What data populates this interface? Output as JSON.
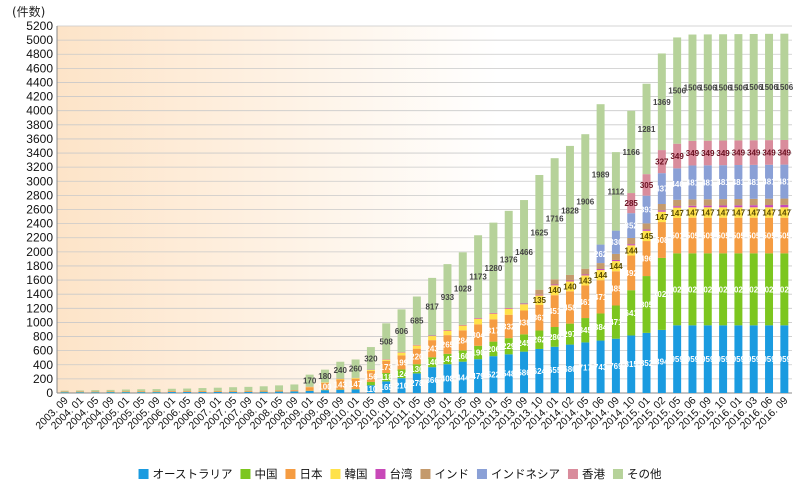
{
  "chart_data": {
    "type": "bar",
    "stacked": true,
    "title": "",
    "unit_label": "(件数)",
    "ylim": [
      0,
      5200
    ],
    "yticks": [
      0,
      200,
      400,
      600,
      800,
      1000,
      1200,
      1400,
      1600,
      1800,
      2000,
      2200,
      2400,
      2600,
      2800,
      3000,
      3200,
      3400,
      3600,
      3800,
      4000,
      4200,
      4400,
      4600,
      4800,
      5000,
      5200
    ],
    "grid": true,
    "legend_position": "bottom",
    "categories": [
      "2003. 09",
      "2004. 01",
      "2004. 05",
      "2004. 09",
      "2005. 01",
      "2005. 05",
      "2005. 09",
      "2006. 01",
      "2006. 05",
      "2006. 09",
      "2007. 01",
      "2007. 05",
      "2007. 09",
      "2008. 01",
      "2008. 05",
      "2008. 09",
      "2009. 01",
      "2009. 05",
      "2009. 09",
      "2010. 01",
      "2010. 05",
      "2010. 09",
      "2011. 01",
      "2011. 05",
      "2011. 09",
      "2012. 01",
      "2012. 05",
      "2012. 09",
      "2013. 01",
      "2013. 05",
      "2013. 09",
      "2013. 10",
      "2014. 01",
      "2014. 02",
      "2014. 05",
      "2014. 06",
      "2014. 09",
      "2014. 10",
      "2015. 01",
      "2015. 02",
      "2015. 05",
      "2015. 06",
      "2015. 09",
      "2015. 10",
      "2016. 01",
      "2016. 03",
      "2016. 06",
      "2016. 09"
    ],
    "series": [
      {
        "name": "オーストラリア",
        "color": "#1a9be0",
        "values": [
          10,
          10,
          10,
          12,
          12,
          12,
          12,
          14,
          14,
          15,
          15,
          16,
          16,
          18,
          20,
          22,
          30,
          40,
          45,
          50,
          110,
          165,
          210,
          278,
          366,
          408,
          444,
          479,
          522,
          548,
          586,
          624,
          655,
          686,
          717,
          743,
          769,
          815,
          852,
          894,
          959,
          959,
          959,
          959,
          959,
          959,
          959,
          959
        ]
      },
      {
        "name": "中国",
        "color": "#7cc61f",
        "values": [
          2,
          2,
          2,
          2,
          2,
          2,
          2,
          2,
          2,
          2,
          2,
          2,
          2,
          2,
          2,
          2,
          3,
          3,
          4,
          5,
          47,
          118,
          124,
          130,
          140,
          147,
          160,
          190,
          206,
          229,
          245,
          262,
          280,
          297,
          345,
          384,
          471,
          641,
          805,
          1020,
          1020,
          1020,
          1020,
          1020,
          1020,
          1020,
          1020,
          1020
        ]
      },
      {
        "name": "日本",
        "color": "#f59c42",
        "values": [
          8,
          8,
          8,
          9,
          9,
          10,
          10,
          11,
          11,
          12,
          12,
          13,
          13,
          14,
          15,
          16,
          50,
          100,
          143,
          147,
          156,
          173,
          199,
          220,
          243,
          265,
          284,
          304,
          317,
          332,
          338,
          361,
          451,
          458,
          461,
          471,
          485,
          492,
          496,
          508,
          501,
          505,
          505,
          505,
          505,
          505,
          505,
          505
        ]
      },
      {
        "name": "韓国",
        "color": "#ffe24a",
        "values": [
          0,
          0,
          0,
          0,
          0,
          0,
          0,
          0,
          0,
          0,
          0,
          0,
          0,
          0,
          0,
          0,
          5,
          6,
          8,
          10,
          14,
          17,
          40,
          47,
          58,
          65,
          69,
          80,
          80,
          86,
          89,
          135,
          140,
          140,
          143,
          144,
          144,
          144,
          145,
          147,
          147,
          147,
          147,
          147,
          147,
          147,
          147,
          147
        ]
      },
      {
        "name": "台湾",
        "color": "#c849b8",
        "values": [
          1,
          1,
          1,
          1,
          1,
          1,
          1,
          1,
          1,
          1,
          1,
          1,
          1,
          1,
          1,
          1,
          2,
          2,
          3,
          3,
          4,
          6,
          6,
          7,
          7,
          8,
          8,
          9,
          9,
          10,
          10,
          11,
          12,
          13,
          14,
          15,
          16,
          17,
          18,
          19,
          20,
          22,
          24,
          26,
          28,
          30,
          32,
          34
        ]
      },
      {
        "name": "インド",
        "color": "#c49a6c",
        "values": [
          0,
          0,
          0,
          0,
          0,
          0,
          0,
          0,
          0,
          0,
          0,
          0,
          0,
          0,
          0,
          0,
          0,
          0,
          0,
          0,
          0,
          0,
          0,
          0,
          0,
          0,
          0,
          0,
          0,
          0,
          0,
          71,
          73,
          79,
          81,
          84,
          86,
          87,
          87,
          90,
          90,
          90,
          90,
          90,
          90,
          90,
          90,
          90
        ]
      },
      {
        "name": "インドネシア",
        "color": "#8aa0d6",
        "values": [
          0,
          0,
          0,
          0,
          0,
          0,
          0,
          0,
          0,
          0,
          0,
          0,
          0,
          0,
          0,
          0,
          0,
          0,
          0,
          0,
          0,
          0,
          0,
          0,
          0,
          0,
          0,
          0,
          0,
          0,
          0,
          0,
          0,
          0,
          0,
          262,
          330,
          352,
          393,
          437,
          446,
          481,
          481,
          481,
          481,
          481,
          481,
          481
        ]
      },
      {
        "name": "香港",
        "color": "#d98c9c",
        "values": [
          0,
          0,
          0,
          0,
          0,
          0,
          0,
          0,
          0,
          0,
          0,
          0,
          0,
          0,
          0,
          0,
          0,
          0,
          0,
          0,
          0,
          0,
          0,
          0,
          0,
          0,
          0,
          0,
          0,
          0,
          0,
          0,
          0,
          0,
          0,
          0,
          0,
          285,
          305,
          327,
          349,
          349,
          349,
          349,
          349,
          349,
          349,
          349
        ]
      },
      {
        "name": "その他",
        "color": "#b6d29a",
        "values": [
          12,
          15,
          20,
          20,
          25,
          28,
          30,
          32,
          35,
          40,
          45,
          50,
          55,
          60,
          70,
          80,
          170,
          180,
          240,
          260,
          320,
          508,
          606,
          685,
          817,
          933,
          1028,
          1173,
          1280,
          1376,
          1466,
          1625,
          1716,
          1828,
          1906,
          1989,
          1112,
          1166,
          1281,
          1369,
          1506,
          1506,
          1506,
          1506,
          1506,
          1506,
          1506,
          1506
        ]
      }
    ]
  },
  "legend": {
    "items": [
      {
        "label": "オーストラリア",
        "color": "#1a9be0"
      },
      {
        "label": "中国",
        "color": "#7cc61f"
      },
      {
        "label": "日本",
        "color": "#f59c42"
      },
      {
        "label": "韓国",
        "color": "#ffe24a"
      },
      {
        "label": "台湾",
        "color": "#c849b8"
      },
      {
        "label": "インド",
        "color": "#c49a6c"
      },
      {
        "label": "インドネシア",
        "color": "#8aa0d6"
      },
      {
        "label": "香港",
        "color": "#d98c9c"
      },
      {
        "label": "その他",
        "color": "#b6d29a"
      }
    ]
  },
  "colors": {
    "bg_start": "#ffffff",
    "bg_end": "#fde4c8",
    "grid": "#c9c9c9"
  }
}
